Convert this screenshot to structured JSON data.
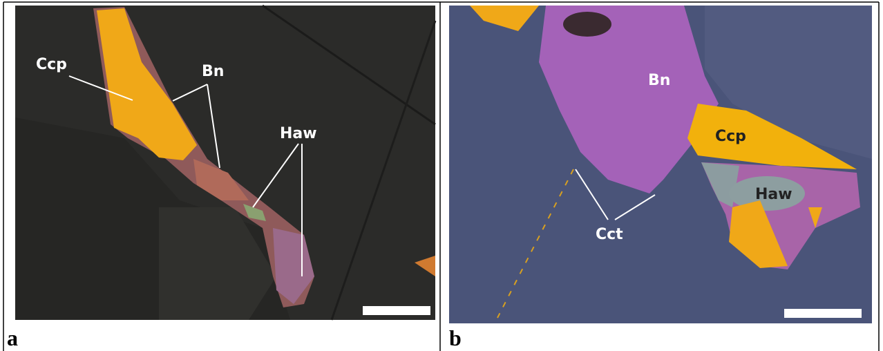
{
  "panels": [
    {
      "label": "a",
      "annotations": [
        "Ccp",
        "Bn",
        "Haw"
      ]
    },
    {
      "label": "b",
      "annotations": [
        "Bn",
        "Ccp",
        "Haw",
        "Cct"
      ]
    }
  ]
}
